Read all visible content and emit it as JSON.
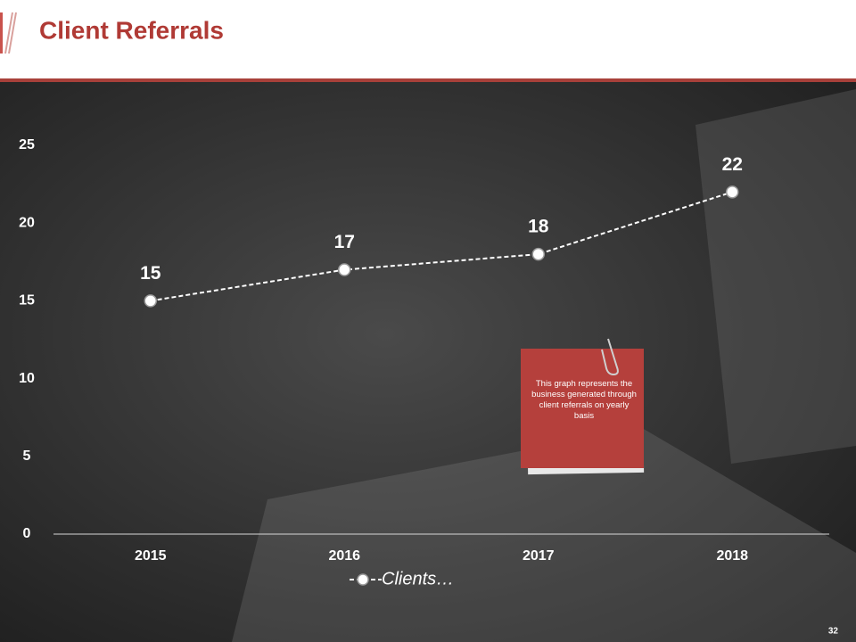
{
  "chart_data": {
    "type": "line",
    "title": "Client Referrals",
    "categories": [
      "2015",
      "2016",
      "2017",
      "2018"
    ],
    "series": [
      {
        "name": "Clients…",
        "color": "#ffffff",
        "values": [
          15,
          17,
          18,
          22
        ]
      }
    ],
    "ylim": [
      0,
      25
    ],
    "yticks": [
      0,
      5,
      10,
      15,
      20,
      25
    ],
    "annotation": "This graph represents the business generated through client referrals on yearly basis"
  },
  "page_number": "32"
}
